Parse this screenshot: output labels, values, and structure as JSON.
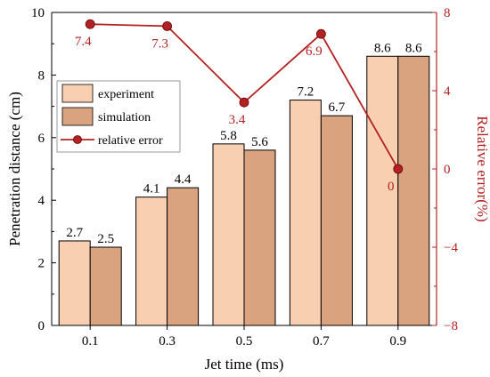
{
  "chart_data": {
    "type": "bar",
    "categories": [
      "0.1",
      "0.3",
      "0.5",
      "0.7",
      "0.9"
    ],
    "xlabel": "Jet time (ms)",
    "ylabel": "Penetration distance (cm)",
    "ylim": [
      0,
      10
    ],
    "yticks": [
      0,
      2,
      4,
      6,
      8,
      10
    ],
    "y2label": "Relative error(%)",
    "y2lim": [
      -8,
      8
    ],
    "y2ticks": [
      -8,
      -4,
      0,
      4,
      8
    ],
    "series": [
      {
        "name": "experiment",
        "type": "bar",
        "color": "#f9cfb2",
        "values": [
          2.7,
          4.1,
          5.8,
          7.2,
          8.6
        ],
        "labels": [
          "2.7",
          "4.1",
          "5.8",
          "7.2",
          "8.6"
        ]
      },
      {
        "name": "simulation",
        "type": "bar",
        "color": "#d9a37f",
        "values": [
          2.5,
          4.4,
          5.6,
          6.7,
          8.6
        ],
        "labels": [
          "2.5",
          "4.4",
          "5.6",
          "6.7",
          "8.6"
        ]
      },
      {
        "name": "relative error",
        "type": "line",
        "axis": "right",
        "color": "#b22222",
        "values": [
          7.4,
          7.3,
          3.4,
          6.9,
          0
        ],
        "labels": [
          "7.4",
          "7.3",
          "3.4",
          "6.9",
          "0"
        ]
      }
    ],
    "legend_position": "upper-left",
    "grid": false,
    "right_axis_color": "#b22222"
  }
}
